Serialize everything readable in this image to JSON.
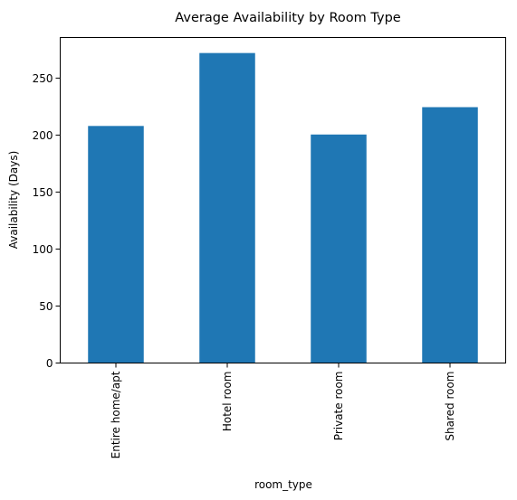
{
  "chart_data": {
    "type": "bar",
    "title": "Average Availability by Room Type",
    "xlabel": "room_type",
    "ylabel": "Availability (Days)",
    "categories": [
      "Entire home/apt",
      "Hotel room",
      "Private room",
      "Shared room"
    ],
    "values": [
      208,
      272,
      200.5,
      224.5
    ],
    "ylim": [
      0,
      285.6
    ],
    "yticks": [
      0,
      50,
      100,
      150,
      200,
      250
    ],
    "bar_color": "#1f77b4",
    "grid": false,
    "legend": "none"
  }
}
